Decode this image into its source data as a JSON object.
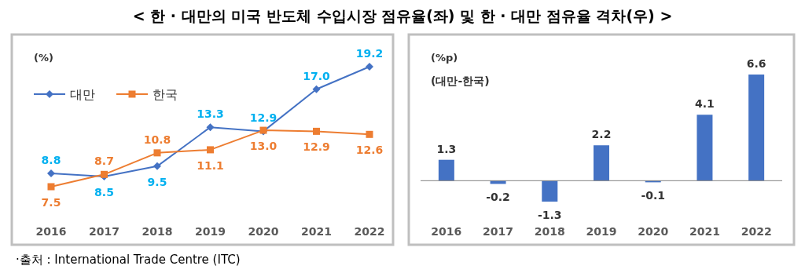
{
  "chart_data": [
    {
      "type": "line",
      "title": "< 한 · 대만의 미국 반도체 수입시장 점유율(좌) 및 한 · 대만 점유율 격차(우) >",
      "ylabel": "(%)",
      "categories": [
        "2016",
        "2017",
        "2018",
        "2019",
        "2020",
        "2021",
        "2022"
      ],
      "series": [
        {
          "name": "대만",
          "color": "#4472c4",
          "marker": "diamond",
          "values": [
            8.8,
            8.5,
            9.5,
            13.3,
            12.9,
            17.0,
            19.2
          ],
          "value_labels": [
            "8.8",
            "8.5",
            "9.5",
            "13.3",
            "12.9",
            "17.0",
            "19.2"
          ]
        },
        {
          "name": "한국",
          "color": "#ed7d31",
          "marker": "square",
          "values": [
            7.5,
            8.7,
            10.8,
            11.1,
            13.0,
            12.9,
            12.6
          ],
          "value_labels": [
            "7.5",
            "8.7",
            "10.8",
            "11.1",
            "13.0",
            "12.9",
            "12.6"
          ]
        }
      ],
      "legend": "top left",
      "grid": false,
      "annotations": [
        "·출처 : International Trade Centre (ITC)"
      ]
    },
    {
      "type": "bar",
      "ylabel": "(%p)",
      "subtitle": "(대만-한국)",
      "categories": [
        "2016",
        "2017",
        "2018",
        "2019",
        "2020",
        "2021",
        "2022"
      ],
      "values": [
        1.3,
        -0.2,
        -1.3,
        2.2,
        -0.1,
        4.1,
        6.6
      ],
      "color": "#4472c4",
      "data_labels": true,
      "grid": false
    }
  ]
}
